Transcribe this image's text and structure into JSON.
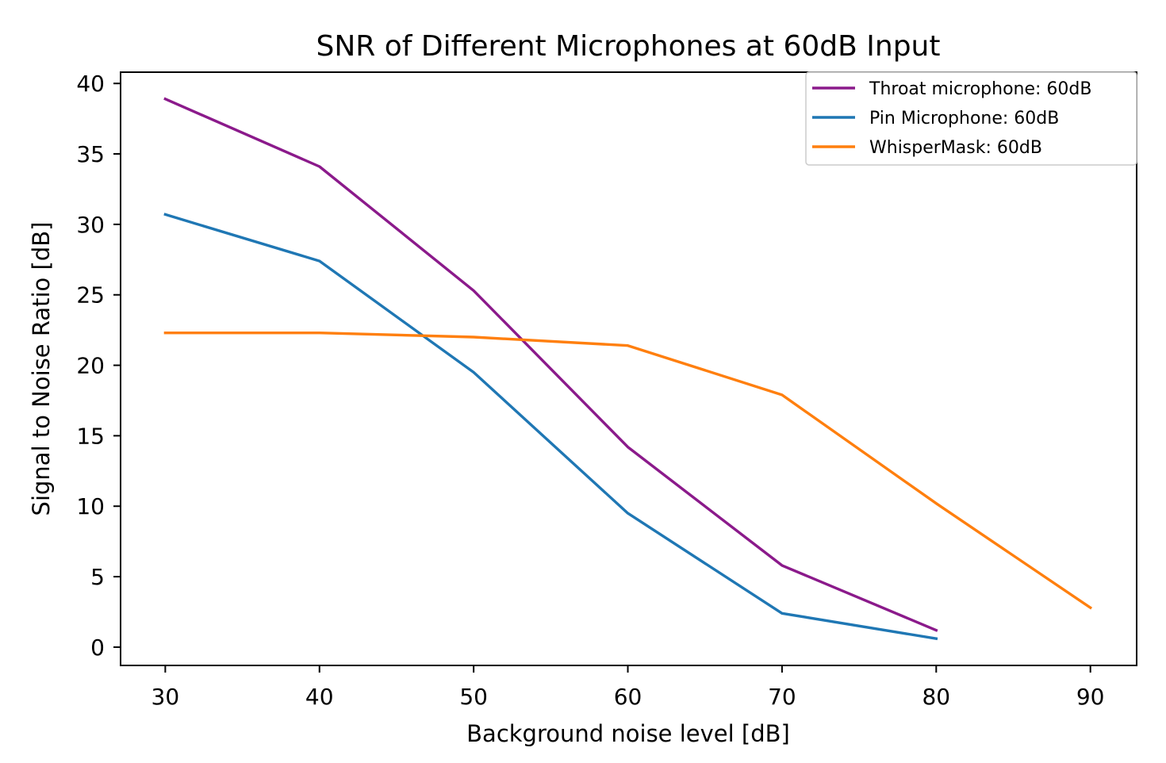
{
  "chart_data": {
    "type": "line",
    "title": "SNR of Different Microphones at 60dB Input",
    "xlabel": "Background noise level [dB]",
    "ylabel": "Signal to Noise Ratio [dB]",
    "xlim": [
      27.1,
      93.0
    ],
    "ylim": [
      -1.3,
      40.8
    ],
    "xticks": [
      30,
      40,
      50,
      60,
      70,
      80,
      90
    ],
    "yticks": [
      0,
      5,
      10,
      15,
      20,
      25,
      30,
      35,
      40
    ],
    "grid": false,
    "legend_position": "top-right",
    "series": [
      {
        "name": "Throat microphone: 60dB",
        "color": "#8b1a8b",
        "x": [
          30,
          40,
          50,
          60,
          70,
          80
        ],
        "y": [
          38.9,
          34.1,
          25.3,
          14.2,
          5.8,
          1.2
        ]
      },
      {
        "name": "Pin Microphone: 60dB",
        "color": "#1f77b4",
        "x": [
          30,
          40,
          50,
          60,
          70,
          80
        ],
        "y": [
          30.7,
          27.4,
          19.5,
          9.5,
          2.4,
          0.6
        ]
      },
      {
        "name": "WhisperMask: 60dB",
        "color": "#ff7f0e",
        "x": [
          30,
          40,
          50,
          60,
          70,
          80,
          90
        ],
        "y": [
          22.3,
          22.3,
          22.0,
          21.4,
          17.9,
          10.2,
          2.8
        ]
      }
    ]
  }
}
